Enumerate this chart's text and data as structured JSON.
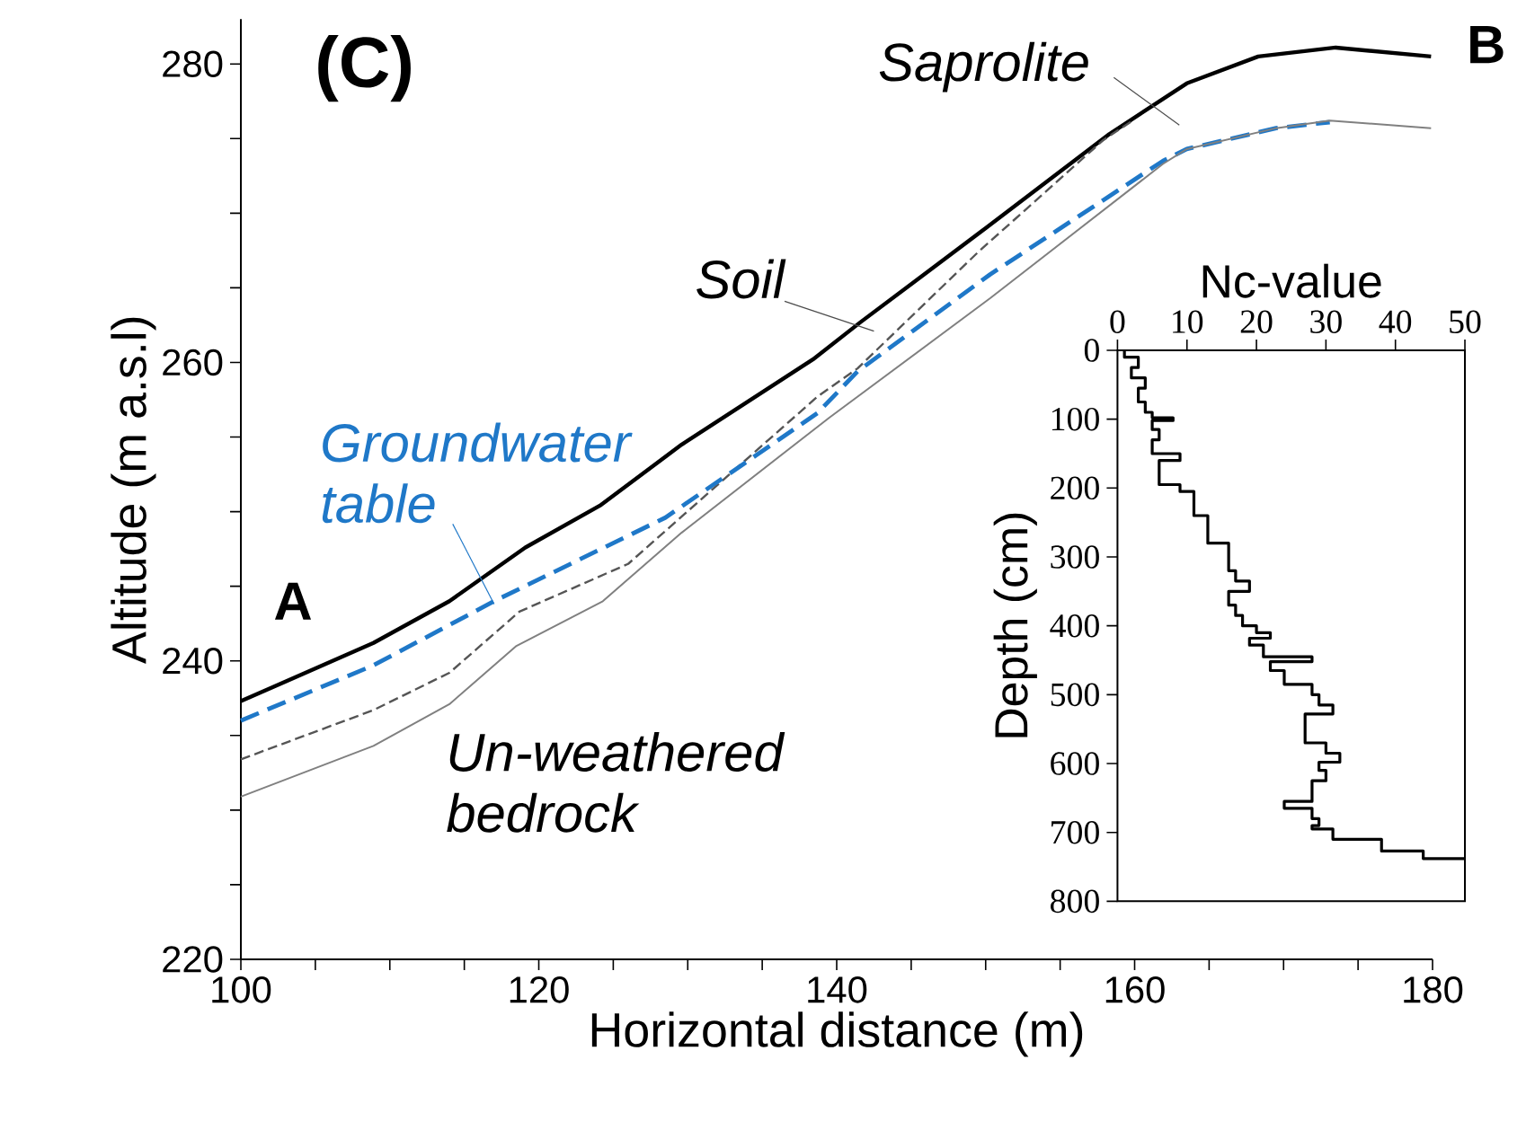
{
  "chart_data": [
    {
      "type": "line",
      "xlabel": "Horizontal distance (m)",
      "ylabel": "Altitude (m a.s.l)",
      "xlim": [
        100,
        180
      ],
      "xticks": [
        100,
        {
          "value": 105,
          "label": null
        },
        {
          "value": 110,
          "label": null
        },
        {
          "value": 115,
          "label": null
        },
        120,
        {
          "value": 125,
          "label": null
        },
        {
          "value": 130,
          "label": null
        },
        {
          "value": 135,
          "label": null
        },
        140,
        {
          "value": 145,
          "label": null
        },
        {
          "value": 150,
          "label": null
        },
        {
          "value": 155,
          "label": null
        },
        160,
        {
          "value": 165,
          "label": null
        },
        {
          "value": 170,
          "label": null
        },
        {
          "value": 175,
          "label": null
        },
        180
      ],
      "ylim": [
        220,
        283
      ],
      "yticks": [
        220,
        {
          "value": 225,
          "label": null
        },
        {
          "value": 230,
          "label": null
        },
        {
          "value": 235,
          "label": null
        },
        240,
        {
          "value": 245,
          "label": null
        },
        {
          "value": 250,
          "label": null
        },
        {
          "value": 255,
          "label": null
        },
        260,
        {
          "value": 265,
          "label": null
        },
        {
          "value": 270,
          "label": null
        },
        {
          "value": 275,
          "label": null
        },
        280
      ],
      "series": [
        {
          "color": "#000000",
          "line_style": "solid",
          "x": [
            100,
            108.9,
            114,
            119.1,
            124.1,
            129.6,
            138.4,
            141.6,
            150,
            158.3,
            163.5,
            168.3,
            173.5,
            179.9
          ],
          "values": [
            237.3,
            241.2,
            244.0,
            247.6,
            250.4,
            254.5,
            260.2,
            262.7,
            269,
            275.3,
            278.7,
            280.5,
            281.1,
            280.5
          ]
        },
        {
          "color": "#555555",
          "line_style": "dashed",
          "x": [
            100,
            108.9,
            114,
            118.7,
            126,
            138.7,
            141.4,
            149.5,
            157.9,
            160
          ],
          "values": [
            233.4,
            236.7,
            239.2,
            243.3,
            246.5,
            257.7,
            259.6,
            267.4,
            274.9,
            276.3
          ]
        },
        {
          "color": "#1f78c8",
          "line_style": "dashed",
          "x": [
            100,
            108.9,
            117,
            128.5,
            138.7,
            141.4,
            150.3,
            161.9,
            163.5,
            169.5,
            173.1
          ],
          "values": [
            236.0,
            239.7,
            244.0,
            249.6,
            256.6,
            259.4,
            265.9,
            273.5,
            274.3,
            275.7,
            276.1
          ]
        },
        {
          "color": "#808080",
          "line_style": "solid",
          "x": [
            100,
            108.9,
            114,
            118.5,
            124.3,
            129.6,
            139.5,
            150.3,
            161.9,
            163.5,
            169.5,
            173.1,
            179.9
          ],
          "values": [
            230.9,
            234.3,
            237.1,
            241.0,
            244.0,
            248.6,
            256.3,
            264.3,
            273.3,
            274.3,
            275.7,
            276.2,
            275.7
          ]
        }
      ],
      "annotations": [
        "(C)",
        "A",
        "B",
        "Soil",
        "Saprolite",
        {
          "text": "Groundwater table",
          "x": 117.0,
          "y": 243.8
        },
        "Un-weathered bedrock"
      ]
    },
    {
      "type": "line",
      "xlabel": "Nc-value",
      "ylabel": "Depth (cm)",
      "xlim": [
        0,
        50
      ],
      "xticks": [
        0,
        10,
        20,
        30,
        40,
        50
      ],
      "ylim": [
        800,
        0
      ],
      "yticks": [
        0,
        100,
        200,
        300,
        400,
        500,
        600,
        700,
        800
      ],
      "series": [
        {
          "color": "#000000",
          "x": [
            1,
            1,
            3,
            3,
            2,
            2,
            4,
            4,
            3,
            3,
            4,
            4,
            5,
            5,
            8,
            8,
            5,
            5,
            6,
            6,
            5,
            5,
            9,
            9,
            6,
            6,
            9,
            9,
            11,
            11,
            13,
            13,
            16,
            16,
            17,
            17,
            19,
            19,
            16,
            16,
            17,
            17,
            18,
            18,
            20,
            20,
            22,
            22,
            19,
            19,
            21,
            21,
            28,
            28,
            22,
            22,
            24,
            24,
            28,
            28,
            29,
            29,
            31,
            31,
            27,
            27,
            30,
            30,
            32,
            32,
            29,
            29,
            30,
            30,
            28,
            28,
            24,
            24,
            28,
            28,
            29,
            29,
            28,
            28,
            31,
            31,
            38,
            38,
            44,
            44,
            50
          ],
          "values": [
            0,
            10,
            10,
            25,
            25,
            40,
            40,
            55,
            55,
            75,
            75,
            90,
            90,
            98,
            98,
            102,
            102,
            115,
            115,
            130,
            130,
            150,
            150,
            160,
            160,
            195,
            195,
            205,
            205,
            240,
            240,
            280,
            280,
            320,
            320,
            335,
            335,
            350,
            350,
            370,
            370,
            385,
            385,
            400,
            400,
            410,
            410,
            418,
            418,
            428,
            428,
            445,
            445,
            452,
            452,
            465,
            465,
            485,
            485,
            500,
            500,
            515,
            515,
            528,
            528,
            570,
            570,
            585,
            585,
            598,
            598,
            610,
            610,
            625,
            625,
            655,
            655,
            665,
            665,
            680,
            680,
            690,
            690,
            695,
            695,
            710,
            710,
            727,
            727,
            738,
            738
          ]
        }
      ]
    }
  ]
}
